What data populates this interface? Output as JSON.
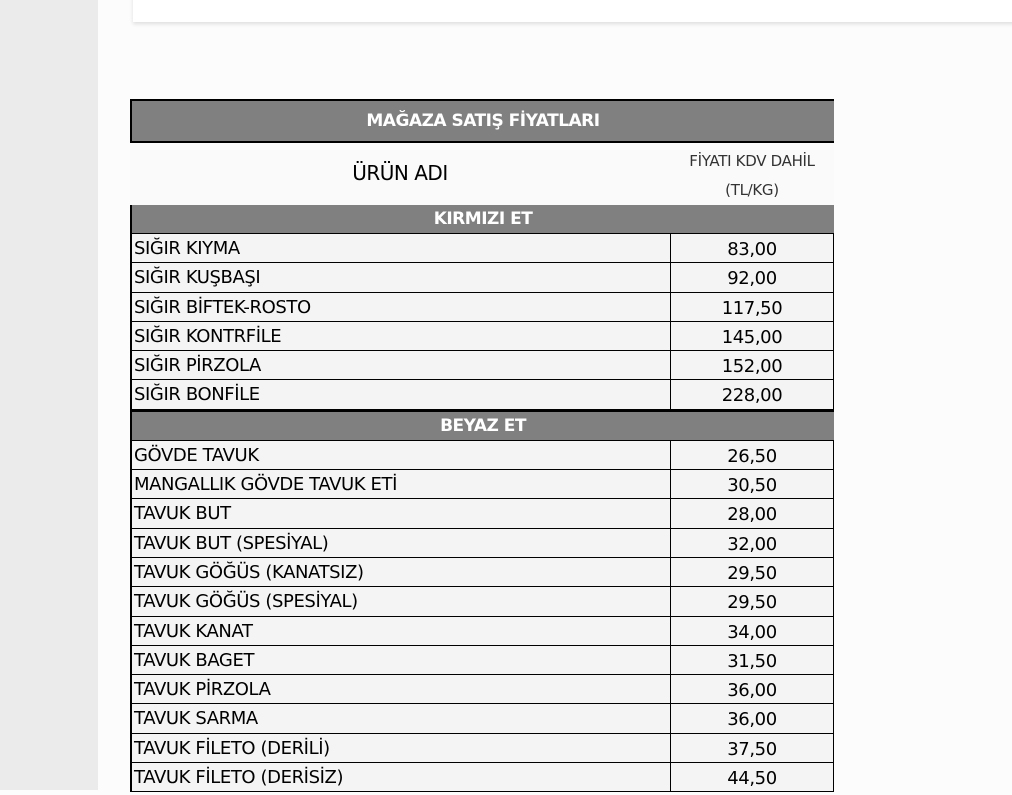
{
  "table": {
    "title": "MAĞAZA SATIŞ FİYATLARI",
    "col_name": "ÜRÜN ADI",
    "col_price_line1": "FİYATI KDV DAHİL",
    "col_price_line2": "(TL/KG)",
    "categories": [
      {
        "name": "KIRMIZI ET",
        "items": [
          {
            "name": "SIĞIR KIYMA",
            "price": "83,00"
          },
          {
            "name": "SIĞIR KUŞBAŞI",
            "price": "92,00"
          },
          {
            "name": "SIĞIR BİFTEK-ROSTO",
            "price": "117,50"
          },
          {
            "name": "SIĞIR KONTRFİLE",
            "price": "145,00"
          },
          {
            "name": "SIĞIR PİRZOLA",
            "price": "152,00"
          },
          {
            "name": "SIĞIR BONFİLE",
            "price": "228,00"
          }
        ]
      },
      {
        "name": "BEYAZ ET",
        "items": [
          {
            "name": "GÖVDE TAVUK",
            "price": "26,50"
          },
          {
            "name": "MANGALLIK GÖVDE TAVUK ETİ",
            "price": "30,50"
          },
          {
            "name": "TAVUK BUT",
            "price": "28,00"
          },
          {
            "name": "TAVUK BUT (SPESİYAL)",
            "price": "32,00"
          },
          {
            "name": "TAVUK GÖĞÜS (KANATSIZ)",
            "price": "29,50"
          },
          {
            "name": "TAVUK GÖĞÜS (SPESİYAL)",
            "price": "29,50"
          },
          {
            "name": "TAVUK KANAT",
            "price": "34,00"
          },
          {
            "name": "TAVUK BAGET",
            "price": "31,50"
          },
          {
            "name": "TAVUK PİRZOLA",
            "price": "36,00"
          },
          {
            "name": "TAVUK SARMA",
            "price": "36,00"
          },
          {
            "name": "TAVUK FİLETO (DERİLİ)",
            "price": "37,50"
          },
          {
            "name": "TAVUK FİLETO (DERİSİZ)",
            "price": "44,50"
          }
        ]
      }
    ]
  }
}
